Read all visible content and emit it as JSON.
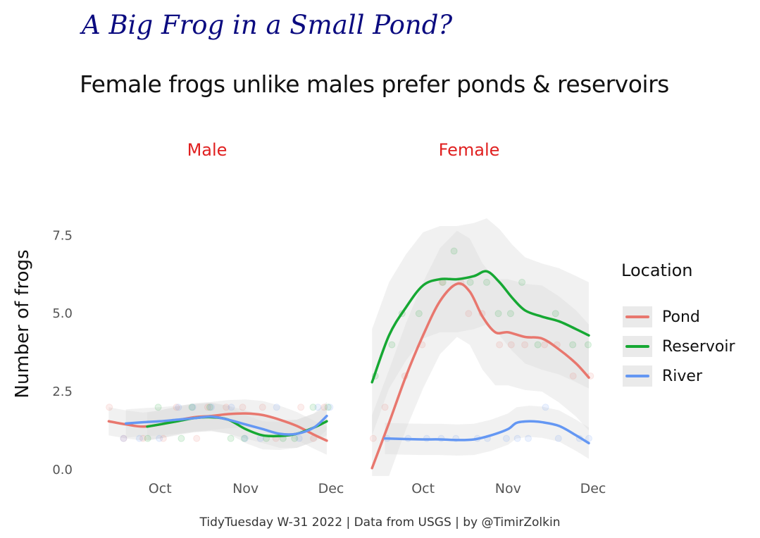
{
  "chart_data": {
    "type": "line",
    "title": "A Big Frog in a Small Pond?",
    "subtitle": "Female frogs unlike males prefer ponds & reservoirs",
    "ylabel": "Number of frogs",
    "xlabel": "",
    "caption": "TidyTuesday W-31 2022 | Data from USGS | by @TimirZolkin",
    "ylim": [
      0,
      8.5
    ],
    "yticks": [
      "0.0",
      "2.5",
      "5.0",
      "7.5"
    ],
    "xticks": [
      "Oct",
      "Nov",
      "Dec"
    ],
    "xlim": [
      -0.9,
      2.0
    ],
    "legend": {
      "title": "Location",
      "position": "right",
      "entries": [
        {
          "name": "Pond",
          "color": "#e8776e"
        },
        {
          "name": "Reservoir",
          "color": "#16a833"
        },
        {
          "name": "River",
          "color": "#6497f3"
        }
      ]
    },
    "facets": [
      {
        "name": "Male",
        "series": [
          {
            "name": "Pond",
            "x": [
              -0.6,
              -0.4,
              -0.2,
              0.0,
              0.2,
              0.4,
              0.6,
              0.8,
              1.0,
              1.2,
              1.4,
              1.6,
              1.8,
              1.95
            ],
            "y": [
              1.55,
              1.45,
              1.38,
              1.45,
              1.58,
              1.68,
              1.72,
              1.78,
              1.8,
              1.75,
              1.6,
              1.4,
              1.12,
              0.93
            ]
          },
          {
            "name": "Reservoir",
            "x": [
              -0.15,
              0.0,
              0.2,
              0.4,
              0.6,
              0.8,
              1.0,
              1.2,
              1.4,
              1.6,
              1.8,
              1.95
            ],
            "y": [
              1.38,
              1.45,
              1.55,
              1.65,
              1.68,
              1.6,
              1.3,
              1.1,
              1.08,
              1.15,
              1.35,
              1.55
            ]
          },
          {
            "name": "River",
            "x": [
              -0.4,
              -0.2,
              0.0,
              0.2,
              0.4,
              0.6,
              0.8,
              1.0,
              1.2,
              1.4,
              1.6,
              1.8,
              1.95
            ],
            "y": [
              1.48,
              1.52,
              1.55,
              1.6,
              1.65,
              1.7,
              1.6,
              1.45,
              1.3,
              1.15,
              1.15,
              1.35,
              1.72
            ]
          }
        ]
      },
      {
        "name": "Female",
        "series": [
          {
            "name": "Pond",
            "x": [
              -0.6,
              -0.4,
              -0.2,
              0.0,
              0.2,
              0.4,
              0.55,
              0.7,
              0.85,
              1.0,
              1.2,
              1.4,
              1.6,
              1.8,
              1.95
            ],
            "y": [
              0.05,
              1.5,
              3.0,
              4.3,
              5.4,
              5.95,
              5.7,
              4.9,
              4.4,
              4.4,
              4.25,
              4.2,
              3.85,
              3.4,
              2.95
            ]
          },
          {
            "name": "Reservoir",
            "x": [
              -0.6,
              -0.4,
              -0.2,
              0.0,
              0.2,
              0.4,
              0.6,
              0.75,
              0.9,
              1.05,
              1.2,
              1.4,
              1.6,
              1.8,
              1.95
            ],
            "y": [
              2.8,
              4.3,
              5.2,
              5.9,
              6.1,
              6.1,
              6.2,
              6.35,
              6.0,
              5.5,
              5.1,
              4.9,
              4.75,
              4.5,
              4.3
            ]
          },
          {
            "name": "River",
            "x": [
              -0.45,
              -0.2,
              0.0,
              0.2,
              0.4,
              0.6,
              0.8,
              1.0,
              1.1,
              1.25,
              1.4,
              1.6,
              1.8,
              1.95
            ],
            "y": [
              1.0,
              0.98,
              0.97,
              0.97,
              0.95,
              0.97,
              1.1,
              1.3,
              1.5,
              1.55,
              1.52,
              1.4,
              1.1,
              0.85
            ]
          }
        ]
      }
    ]
  }
}
